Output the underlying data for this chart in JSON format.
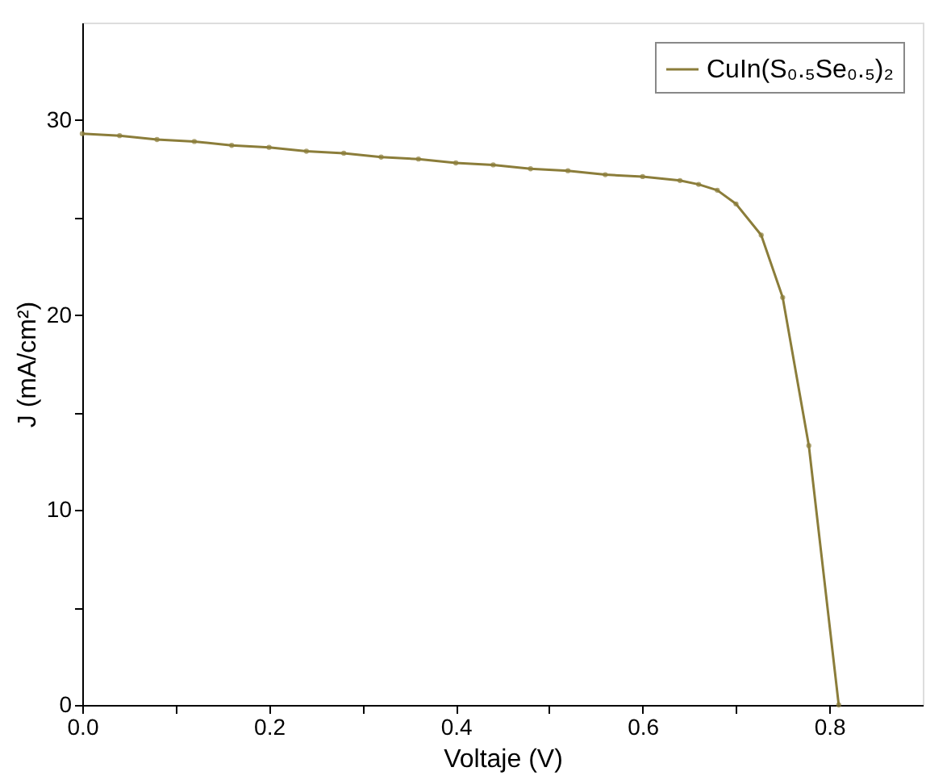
{
  "chart_data": {
    "type": "line",
    "xlabel": "Voltaje (V)",
    "ylabel": "J (mA/cm²)",
    "x": [
      0,
      0.04,
      0.08,
      0.12,
      0.16,
      0.2,
      0.24,
      0.28,
      0.32,
      0.36,
      0.4,
      0.44,
      0.48,
      0.52,
      0.56,
      0.6,
      0.64,
      0.66,
      0.68,
      0.7,
      0.727,
      0.75,
      0.778,
      0.81
    ],
    "series": [
      {
        "name": "CuIn(S₀.₅Se₀.₅)₂",
        "color": "#8b7d3a",
        "values": [
          29.3,
          29.2,
          29.0,
          28.9,
          28.7,
          28.6,
          28.4,
          28.3,
          28.1,
          28.0,
          27.8,
          27.7,
          27.5,
          27.4,
          27.2,
          27.1,
          26.9,
          26.7,
          26.4,
          25.7,
          24.1,
          20.9,
          13.3,
          0
        ]
      }
    ],
    "xlim": [
      0,
      0.9
    ],
    "ylim": [
      0,
      35
    ],
    "xticks": [
      {
        "value": 0,
        "label": "0.0"
      },
      {
        "value": 0.1,
        "label": null
      },
      {
        "value": 0.2,
        "label": "0.2"
      },
      {
        "value": 0.3,
        "label": null
      },
      {
        "value": 0.4,
        "label": "0.4"
      },
      {
        "value": 0.5,
        "label": null
      },
      {
        "value": 0.6,
        "label": "0.6"
      },
      {
        "value": 0.7,
        "label": null
      },
      {
        "value": 0.8,
        "label": "0.8"
      }
    ],
    "yticks": [
      0,
      {
        "value": 5,
        "label": null
      },
      10,
      {
        "value": 15,
        "label": null
      },
      20,
      {
        "value": 25,
        "label": null
      },
      30
    ],
    "legend": "top right",
    "marker": "circle",
    "line_style": "solid",
    "grid": false
  }
}
